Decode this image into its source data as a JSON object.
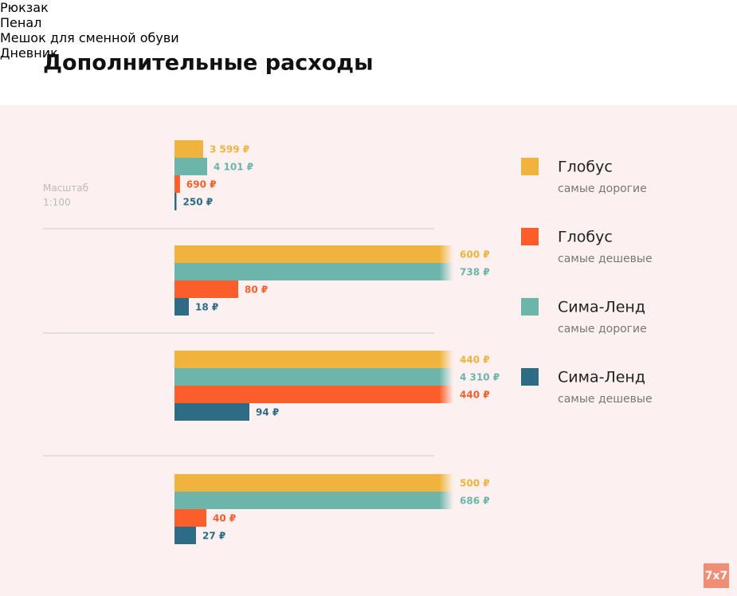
{
  "chart_data": {
    "type": "bar",
    "title": "Дополнительные расходы",
    "categories": [
      "Рюкзак",
      "Пенал",
      "Мешок для сменной обуви",
      "Дневник"
    ],
    "scale_note": "Масштаб",
    "scales": [
      {
        "value": 100,
        "label": "1:100"
      },
      null,
      null,
      null
    ],
    "series": [
      {
        "name": "Глобус",
        "note": "самые дорогие",
        "color": "#f0b43e",
        "values": [
          3599,
          600,
          440,
          500
        ],
        "value_labels": [
          "3 599 ₽",
          "600 ₽",
          "440 ₽",
          "500 ₽"
        ]
      },
      {
        "name": "Сима-Ленд",
        "note": "самые дорогие",
        "color": "#6db5ab",
        "values": [
          4101,
          738,
          4310,
          686
        ],
        "value_labels": [
          "4 101 ₽",
          "738 ₽",
          "4 310 ₽",
          "686 ₽"
        ]
      },
      {
        "name": "Глобус",
        "note": "самые дешевые",
        "color": "#fc5e2b",
        "values": [
          690,
          80,
          440,
          40
        ],
        "value_labels": [
          "690 ₽",
          "80 ₽",
          "440 ₽",
          "40 ₽"
        ]
      },
      {
        "name": "Сима-Ленд",
        "note": "самые дешевые",
        "color": "#2e6b84",
        "values": [
          250,
          18,
          94,
          27
        ],
        "value_labels": [
          "250 ₽",
          "18 ₽",
          "94 ₽",
          "27 ₽"
        ]
      }
    ]
  },
  "logo": "7x7"
}
